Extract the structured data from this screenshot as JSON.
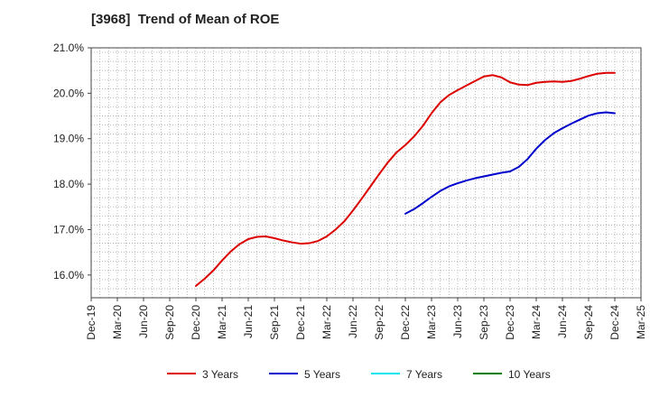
{
  "chart_data": {
    "type": "line",
    "title": "[3968]  Trend of Mean of ROE",
    "xlabel": "",
    "ylabel": "",
    "x_ticks": [
      "Dec-19",
      "Mar-20",
      "Jun-20",
      "Sep-20",
      "Dec-20",
      "Mar-21",
      "Jun-21",
      "Sep-21",
      "Dec-21",
      "Mar-22",
      "Jun-22",
      "Sep-22",
      "Dec-22",
      "Mar-23",
      "Jun-23",
      "Sep-23",
      "Dec-23",
      "Mar-24",
      "Jun-24",
      "Sep-24",
      "Dec-24",
      "Mar-25"
    ],
    "y_ticks": [
      "16.0%",
      "17.0%",
      "18.0%",
      "19.0%",
      "20.0%",
      "21.0%"
    ],
    "ylim": [
      15.5,
      21.0
    ],
    "grid": true,
    "legend_position": "bottom",
    "series": [
      {
        "name": "3 Years",
        "color": "#dd0000",
        "points": [
          [
            "Dec-20",
            15.76
          ],
          [
            "Jan-21",
            15.92
          ],
          [
            "Feb-21",
            16.1
          ],
          [
            "Mar-21",
            16.32
          ],
          [
            "Apr-21",
            16.52
          ],
          [
            "May-21",
            16.68
          ],
          [
            "Jun-21",
            16.79
          ],
          [
            "Jul-21",
            16.84
          ],
          [
            "Aug-21",
            16.85
          ],
          [
            "Sep-21",
            16.81
          ],
          [
            "Oct-21",
            16.76
          ],
          [
            "Nov-21",
            16.72
          ],
          [
            "Dec-21",
            16.69
          ],
          [
            "Jan-22",
            16.7
          ],
          [
            "Feb-22",
            16.75
          ],
          [
            "Mar-22",
            16.85
          ],
          [
            "Apr-22",
            17.0
          ],
          [
            "May-22",
            17.18
          ],
          [
            "Jun-22",
            17.42
          ],
          [
            "Jul-22",
            17.68
          ],
          [
            "Aug-22",
            17.95
          ],
          [
            "Sep-22",
            18.22
          ],
          [
            "Oct-22",
            18.48
          ],
          [
            "Nov-22",
            18.7
          ],
          [
            "Dec-22",
            18.86
          ],
          [
            "Jan-23",
            19.05
          ],
          [
            "Feb-23",
            19.28
          ],
          [
            "Mar-23",
            19.56
          ],
          [
            "Apr-23",
            19.8
          ],
          [
            "May-23",
            19.96
          ],
          [
            "Jun-23",
            20.07
          ],
          [
            "Jul-23",
            20.17
          ],
          [
            "Aug-23",
            20.27
          ],
          [
            "Sep-23",
            20.37
          ],
          [
            "Oct-23",
            20.4
          ],
          [
            "Nov-23",
            20.35
          ],
          [
            "Dec-23",
            20.24
          ],
          [
            "Jan-24",
            20.19
          ],
          [
            "Feb-24",
            20.18
          ],
          [
            "Mar-24",
            20.23
          ],
          [
            "Apr-24",
            20.25
          ],
          [
            "May-24",
            20.26
          ],
          [
            "Jun-24",
            20.25
          ],
          [
            "Jul-24",
            20.27
          ],
          [
            "Aug-24",
            20.32
          ],
          [
            "Sep-24",
            20.38
          ],
          [
            "Oct-24",
            20.43
          ],
          [
            "Nov-24",
            20.45
          ],
          [
            "Dec-24",
            20.45
          ]
        ]
      },
      {
        "name": "5 Years",
        "color": "#0000cc",
        "points": [
          [
            "Dec-22",
            17.35
          ],
          [
            "Jan-23",
            17.45
          ],
          [
            "Feb-23",
            17.58
          ],
          [
            "Mar-23",
            17.72
          ],
          [
            "Apr-23",
            17.85
          ],
          [
            "May-23",
            17.95
          ],
          [
            "Jun-23",
            18.02
          ],
          [
            "Jul-23",
            18.08
          ],
          [
            "Aug-23",
            18.13
          ],
          [
            "Sep-23",
            18.17
          ],
          [
            "Oct-23",
            18.21
          ],
          [
            "Nov-23",
            18.25
          ],
          [
            "Dec-23",
            18.28
          ],
          [
            "Jan-24",
            18.38
          ],
          [
            "Feb-24",
            18.55
          ],
          [
            "Mar-24",
            18.78
          ],
          [
            "Apr-24",
            18.97
          ],
          [
            "May-24",
            19.12
          ],
          [
            "Jun-24",
            19.23
          ],
          [
            "Jul-24",
            19.33
          ],
          [
            "Aug-24",
            19.42
          ],
          [
            "Sep-24",
            19.51
          ],
          [
            "Oct-24",
            19.56
          ],
          [
            "Nov-24",
            19.58
          ],
          [
            "Dec-24",
            19.56
          ]
        ]
      },
      {
        "name": "7 Years",
        "color": "#00e5ee",
        "points": []
      },
      {
        "name": "10 Years",
        "color": "#008000",
        "points": []
      }
    ]
  }
}
